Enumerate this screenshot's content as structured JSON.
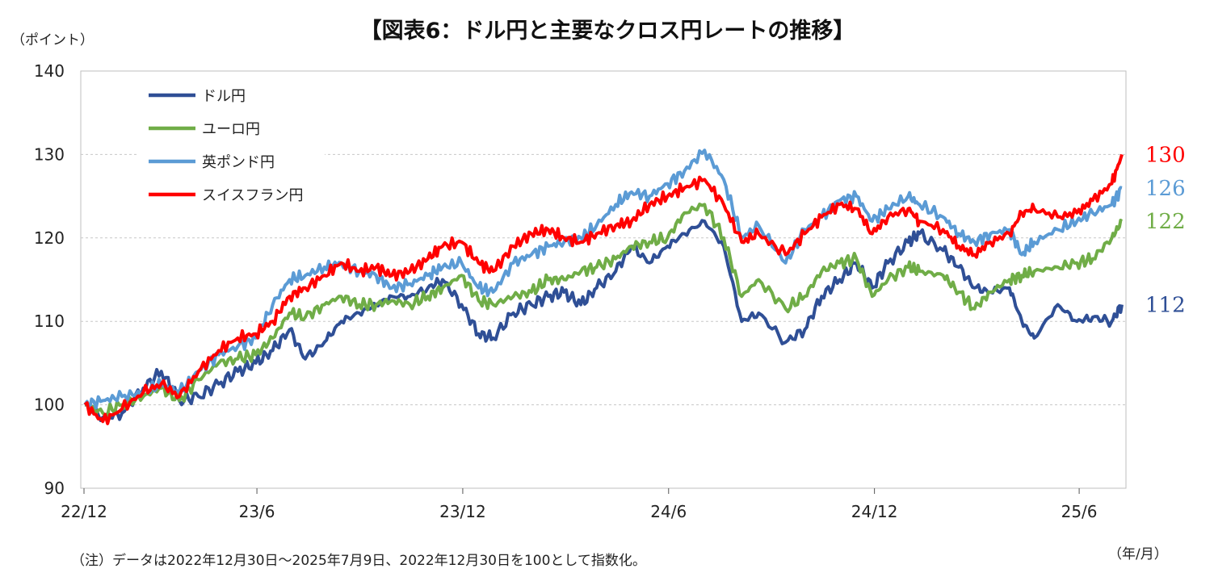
{
  "title": "【図表6：ドル円と主要なクロス円レートの推移】",
  "note": "（注）データは2022年12月30日～2025年7月9日、2022年12月30日を100として指数化。",
  "chart_data": {
    "type": "line",
    "ylabel": "（ポイント）",
    "xlabel": "（年/月）",
    "ylim": [
      90,
      140
    ],
    "yticks": [
      90,
      100,
      110,
      120,
      130,
      140
    ],
    "xticks": [
      "22/12",
      "23/6",
      "23/12",
      "24/6",
      "24/12",
      "25/6"
    ],
    "xtick_dates": [
      "2022-12",
      "2023-06",
      "2023-12",
      "2024-06",
      "2024-12",
      "2025-06"
    ],
    "xlim": [
      "2022-12-30",
      "2025-07-09"
    ],
    "grid": "horizontal dotted",
    "legend_position": "top-left",
    "series": [
      {
        "name": "ドル円",
        "color": "#2f4f96",
        "end_label": "112",
        "points": [
          [
            "2022-12-30",
            100
          ],
          [
            "2023-01-15",
            98.5
          ],
          [
            "2023-02-01",
            99
          ],
          [
            "2023-02-20",
            102
          ],
          [
            "2023-03-08",
            104
          ],
          [
            "2023-03-24",
            100.5
          ],
          [
            "2023-04-10",
            101
          ],
          [
            "2023-04-28",
            102.5
          ],
          [
            "2023-05-15",
            104
          ],
          [
            "2023-05-31",
            105
          ],
          [
            "2023-06-15",
            106.5
          ],
          [
            "2023-06-30",
            109
          ],
          [
            "2023-07-14",
            105.5
          ],
          [
            "2023-07-31",
            107.5
          ],
          [
            "2023-08-15",
            110
          ],
          [
            "2023-08-31",
            111
          ],
          [
            "2023-09-15",
            112
          ],
          [
            "2023-09-29",
            113
          ],
          [
            "2023-10-15",
            113
          ],
          [
            "2023-10-31",
            114
          ],
          [
            "2023-11-13",
            115
          ],
          [
            "2023-11-30",
            112
          ],
          [
            "2023-12-15",
            108.5
          ],
          [
            "2023-12-28",
            108
          ],
          [
            "2024-01-15",
            111
          ],
          [
            "2024-01-31",
            112
          ],
          [
            "2024-02-15",
            113
          ],
          [
            "2024-02-29",
            113.5
          ],
          [
            "2024-03-15",
            112
          ],
          [
            "2024-03-29",
            114
          ],
          [
            "2024-04-15",
            116
          ],
          [
            "2024-04-29",
            119
          ],
          [
            "2024-05-15",
            117
          ],
          [
            "2024-05-31",
            119
          ],
          [
            "2024-06-15",
            120.5
          ],
          [
            "2024-07-03",
            122
          ],
          [
            "2024-07-20",
            119
          ],
          [
            "2024-08-05",
            110
          ],
          [
            "2024-08-20",
            111
          ],
          [
            "2024-09-13",
            107.5
          ],
          [
            "2024-09-30",
            109
          ],
          [
            "2024-10-15",
            113
          ],
          [
            "2024-10-31",
            115
          ],
          [
            "2024-11-15",
            117
          ],
          [
            "2024-11-29",
            114
          ],
          [
            "2024-12-13",
            117
          ],
          [
            "2024-12-31",
            119.5
          ],
          [
            "2025-01-10",
            120.5
          ],
          [
            "2025-01-31",
            118.5
          ],
          [
            "2025-02-14",
            116.5
          ],
          [
            "2025-02-28",
            114
          ],
          [
            "2025-03-14",
            113.5
          ],
          [
            "2025-03-31",
            114
          ],
          [
            "2025-04-11",
            110
          ],
          [
            "2025-04-22",
            108
          ],
          [
            "2025-05-13",
            112
          ],
          [
            "2025-05-30",
            110
          ],
          [
            "2025-06-13",
            110.5
          ],
          [
            "2025-06-30",
            110
          ],
          [
            "2025-07-09",
            112
          ]
        ]
      },
      {
        "name": "ユーロ円",
        "color": "#70ad47",
        "end_label": "122",
        "points": [
          [
            "2022-12-30",
            100
          ],
          [
            "2023-01-15",
            99
          ],
          [
            "2023-02-01",
            100
          ],
          [
            "2023-02-20",
            101
          ],
          [
            "2023-03-08",
            102
          ],
          [
            "2023-03-24",
            100.5
          ],
          [
            "2023-04-10",
            103
          ],
          [
            "2023-04-28",
            105
          ],
          [
            "2023-05-15",
            105.5
          ],
          [
            "2023-05-31",
            106
          ],
          [
            "2023-06-15",
            108
          ],
          [
            "2023-06-30",
            111
          ],
          [
            "2023-07-14",
            110.5
          ],
          [
            "2023-07-31",
            112
          ],
          [
            "2023-08-15",
            113
          ],
          [
            "2023-08-31",
            112
          ],
          [
            "2023-09-15",
            112
          ],
          [
            "2023-09-29",
            112.5
          ],
          [
            "2023-10-15",
            112
          ],
          [
            "2023-10-31",
            113
          ],
          [
            "2023-11-13",
            114
          ],
          [
            "2023-11-30",
            115.5
          ],
          [
            "2023-12-15",
            112.5
          ],
          [
            "2023-12-28",
            112
          ],
          [
            "2024-01-15",
            113
          ],
          [
            "2024-01-31",
            113.5
          ],
          [
            "2024-02-15",
            115
          ],
          [
            "2024-02-29",
            115
          ],
          [
            "2024-03-15",
            116
          ],
          [
            "2024-03-29",
            116.5
          ],
          [
            "2024-04-15",
            117.5
          ],
          [
            "2024-04-29",
            119
          ],
          [
            "2024-05-15",
            119.5
          ],
          [
            "2024-05-31",
            120
          ],
          [
            "2024-06-15",
            123
          ],
          [
            "2024-07-03",
            124
          ],
          [
            "2024-07-20",
            120
          ],
          [
            "2024-08-05",
            113
          ],
          [
            "2024-08-20",
            115
          ],
          [
            "2024-09-13",
            111.5
          ],
          [
            "2024-09-30",
            113
          ],
          [
            "2024-10-15",
            116
          ],
          [
            "2024-10-31",
            117
          ],
          [
            "2024-11-15",
            117.5
          ],
          [
            "2024-11-29",
            113
          ],
          [
            "2024-12-13",
            115
          ],
          [
            "2024-12-31",
            116.5
          ],
          [
            "2025-01-10",
            116
          ],
          [
            "2025-01-31",
            115.5
          ],
          [
            "2025-02-14",
            113.5
          ],
          [
            "2025-02-28",
            111.5
          ],
          [
            "2025-03-14",
            113.5
          ],
          [
            "2025-03-31",
            115
          ],
          [
            "2025-04-11",
            115.5
          ],
          [
            "2025-04-22",
            116
          ],
          [
            "2025-05-13",
            116.5
          ],
          [
            "2025-05-30",
            117
          ],
          [
            "2025-06-13",
            117.5
          ],
          [
            "2025-06-30",
            120
          ],
          [
            "2025-07-09",
            122
          ]
        ]
      },
      {
        "name": "英ポンド円",
        "color": "#5b9bd5",
        "end_label": "126",
        "points": [
          [
            "2022-12-30",
            100
          ],
          [
            "2023-01-15",
            100.5
          ],
          [
            "2023-02-01",
            101
          ],
          [
            "2023-02-20",
            101.5
          ],
          [
            "2023-03-08",
            102.5
          ],
          [
            "2023-03-24",
            101.5
          ],
          [
            "2023-04-10",
            104
          ],
          [
            "2023-04-28",
            106
          ],
          [
            "2023-05-15",
            107
          ],
          [
            "2023-05-31",
            108
          ],
          [
            "2023-06-15",
            112
          ],
          [
            "2023-06-30",
            115
          ],
          [
            "2023-07-14",
            115.5
          ],
          [
            "2023-07-31",
            116.5
          ],
          [
            "2023-08-15",
            117
          ],
          [
            "2023-08-31",
            116
          ],
          [
            "2023-09-15",
            115.5
          ],
          [
            "2023-09-29",
            114
          ],
          [
            "2023-10-15",
            114.5
          ],
          [
            "2023-10-31",
            115.5
          ],
          [
            "2023-11-13",
            116.5
          ],
          [
            "2023-11-30",
            117
          ],
          [
            "2023-12-15",
            114
          ],
          [
            "2023-12-28",
            113.5
          ],
          [
            "2024-01-15",
            117
          ],
          [
            "2024-01-31",
            118
          ],
          [
            "2024-02-15",
            119
          ],
          [
            "2024-02-29",
            119.5
          ],
          [
            "2024-03-15",
            120
          ],
          [
            "2024-03-29",
            121.5
          ],
          [
            "2024-04-15",
            124
          ],
          [
            "2024-04-29",
            125.5
          ],
          [
            "2024-05-15",
            125
          ],
          [
            "2024-05-31",
            126.5
          ],
          [
            "2024-06-15",
            128
          ],
          [
            "2024-07-03",
            130.5
          ],
          [
            "2024-07-20",
            127
          ],
          [
            "2024-08-05",
            120
          ],
          [
            "2024-08-20",
            121.5
          ],
          [
            "2024-09-13",
            117
          ],
          [
            "2024-09-30",
            121
          ],
          [
            "2024-10-15",
            122.5
          ],
          [
            "2024-10-31",
            124.5
          ],
          [
            "2024-11-15",
            125
          ],
          [
            "2024-11-29",
            122
          ],
          [
            "2024-12-13",
            123.5
          ],
          [
            "2024-12-31",
            125
          ],
          [
            "2025-01-10",
            124
          ],
          [
            "2025-01-31",
            122.5
          ],
          [
            "2025-02-14",
            120.5
          ],
          [
            "2025-02-28",
            119.5
          ],
          [
            "2025-03-14",
            120.5
          ],
          [
            "2025-03-31",
            121
          ],
          [
            "2025-04-11",
            118
          ],
          [
            "2025-04-22",
            119.5
          ],
          [
            "2025-05-13",
            121
          ],
          [
            "2025-05-30",
            122
          ],
          [
            "2025-06-13",
            123
          ],
          [
            "2025-06-30",
            124
          ],
          [
            "2025-07-09",
            126
          ]
        ]
      },
      {
        "name": "スイスフラン円",
        "color": "#ff0000",
        "end_label": "130",
        "points": [
          [
            "2022-12-30",
            100
          ],
          [
            "2023-01-15",
            98
          ],
          [
            "2023-02-01",
            99.5
          ],
          [
            "2023-02-20",
            101.5
          ],
          [
            "2023-03-08",
            102.5
          ],
          [
            "2023-03-24",
            101
          ],
          [
            "2023-04-10",
            104
          ],
          [
            "2023-04-28",
            106.5
          ],
          [
            "2023-05-15",
            108
          ],
          [
            "2023-05-31",
            108.5
          ],
          [
            "2023-06-15",
            110
          ],
          [
            "2023-06-30",
            113
          ],
          [
            "2023-07-14",
            114
          ],
          [
            "2023-07-31",
            115.5
          ],
          [
            "2023-08-15",
            117
          ],
          [
            "2023-08-31",
            116
          ],
          [
            "2023-09-15",
            116.5
          ],
          [
            "2023-09-29",
            115.5
          ],
          [
            "2023-10-15",
            116
          ],
          [
            "2023-10-31",
            117.5
          ],
          [
            "2023-11-13",
            119
          ],
          [
            "2023-11-30",
            119.5
          ],
          [
            "2023-12-15",
            117
          ],
          [
            "2023-12-28",
            116
          ],
          [
            "2024-01-15",
            119
          ],
          [
            "2024-01-31",
            120.5
          ],
          [
            "2024-02-15",
            121
          ],
          [
            "2024-02-29",
            120
          ],
          [
            "2024-03-15",
            119.5
          ],
          [
            "2024-03-29",
            120.5
          ],
          [
            "2024-04-15",
            121.5
          ],
          [
            "2024-04-29",
            122
          ],
          [
            "2024-05-15",
            124
          ],
          [
            "2024-05-31",
            125
          ],
          [
            "2024-06-15",
            126
          ],
          [
            "2024-07-03",
            127
          ],
          [
            "2024-07-20",
            124
          ],
          [
            "2024-08-05",
            119.5
          ],
          [
            "2024-08-20",
            120.5
          ],
          [
            "2024-09-13",
            118
          ],
          [
            "2024-09-30",
            120.5
          ],
          [
            "2024-10-15",
            122.5
          ],
          [
            "2024-10-31",
            124
          ],
          [
            "2024-11-15",
            123.5
          ],
          [
            "2024-11-29",
            120.5
          ],
          [
            "2024-12-13",
            122.5
          ],
          [
            "2024-12-31",
            123.5
          ],
          [
            "2025-01-10",
            122
          ],
          [
            "2025-01-31",
            121
          ],
          [
            "2025-02-14",
            119
          ],
          [
            "2025-02-28",
            118
          ],
          [
            "2025-03-14",
            119.5
          ],
          [
            "2025-03-31",
            120.5
          ],
          [
            "2025-04-11",
            123
          ],
          [
            "2025-04-22",
            123.5
          ],
          [
            "2025-05-13",
            122.5
          ],
          [
            "2025-05-30",
            123
          ],
          [
            "2025-06-13",
            124.5
          ],
          [
            "2025-06-30",
            126.5
          ],
          [
            "2025-07-09",
            130
          ]
        ]
      }
    ]
  }
}
